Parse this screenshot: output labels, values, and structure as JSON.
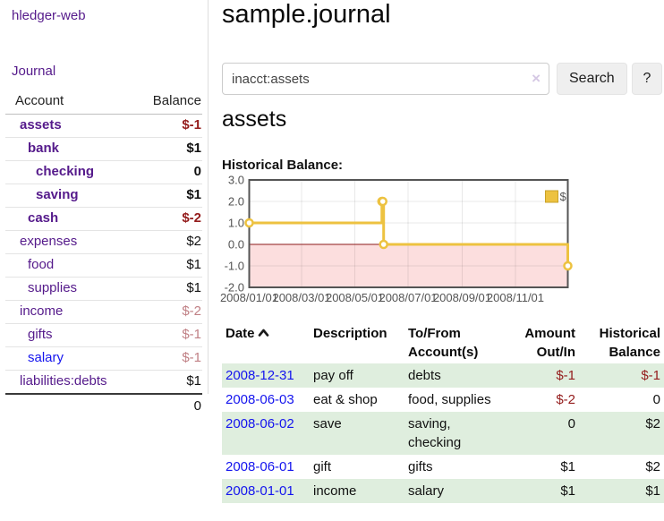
{
  "app": {
    "title": "hledger-web"
  },
  "nav": {
    "journal_label": "Journal"
  },
  "sidebar": {
    "header": {
      "account": "Account",
      "balance": "Balance"
    },
    "accounts": [
      {
        "name": "assets",
        "balance": "$-1",
        "level": 1,
        "emphasized": true
      },
      {
        "name": "bank",
        "balance": "$1",
        "level": 2,
        "emphasized": true
      },
      {
        "name": "checking",
        "balance": "0",
        "level": 3,
        "emphasized": true
      },
      {
        "name": "saving",
        "balance": "$1",
        "level": 3,
        "emphasized": true
      },
      {
        "name": "cash",
        "balance": "$-2",
        "level": 2,
        "emphasized": true
      },
      {
        "name": "expenses",
        "balance": "$2",
        "level": 1,
        "emphasized": false
      },
      {
        "name": "food",
        "balance": "$1",
        "level": 2,
        "emphasized": false
      },
      {
        "name": "supplies",
        "balance": "$1",
        "level": 2,
        "emphasized": false
      },
      {
        "name": "income",
        "balance": "$-2",
        "level": 1,
        "emphasized": false
      },
      {
        "name": "gifts",
        "balance": "$-1",
        "level": 2,
        "emphasized": false
      },
      {
        "name": "salary",
        "balance": "$-1",
        "level": 2,
        "emphasized": false
      },
      {
        "name": "liabilities:debts",
        "balance": "$1",
        "level": 1,
        "emphasized": false
      }
    ],
    "total": "0"
  },
  "main": {
    "title": "sample.journal",
    "search": {
      "value": "inacct:assets",
      "clear_icon": "×",
      "button_label": "Search",
      "help_label": "?"
    },
    "account_heading": "assets",
    "chart_label": "Historical Balance:",
    "table": {
      "headers": {
        "date": "Date",
        "description": "Description",
        "accounts": "To/From Account(s)",
        "amount": "Amount Out/In",
        "balance": "Historical Balance"
      },
      "sort": {
        "column": "date",
        "direction": "ascending"
      },
      "rows": [
        {
          "date": "2008-12-31",
          "description": "pay off",
          "accounts": "debts",
          "amount": "$-1",
          "balance": "$-1"
        },
        {
          "date": "2008-06-03",
          "description": "eat & shop",
          "accounts": "food, supplies",
          "amount": "$-2",
          "balance": "0"
        },
        {
          "date": "2008-06-02",
          "description": "save",
          "accounts": "saving, checking",
          "amount": "0",
          "balance": "$2"
        },
        {
          "date": "2008-06-01",
          "description": "gift",
          "accounts": "gifts",
          "amount": "$1",
          "balance": "$2"
        },
        {
          "date": "2008-01-01",
          "description": "income",
          "accounts": "salary",
          "amount": "$1",
          "balance": "$1"
        }
      ]
    }
  },
  "chart_data": {
    "type": "line",
    "style": "steps",
    "title": "Historical Balance:",
    "xlabel": "",
    "ylabel": "",
    "ylim": [
      -2,
      3
    ],
    "x_range": [
      "2008-01-01",
      "2008-12-31"
    ],
    "x_ticks": [
      "2008/01/01",
      "2008/03/01",
      "2008/05/01",
      "2008/07/01",
      "2008/09/01",
      "2008/11/01"
    ],
    "y_ticks": [
      "3.0",
      "2.0",
      "1.0",
      "0.0",
      "-1.0",
      "-2.0"
    ],
    "grid": true,
    "legend": {
      "label": "$",
      "position": "top-right"
    },
    "series": [
      {
        "name": "$",
        "color": "#edc240",
        "points": [
          {
            "date": "2008-01-01",
            "value": 1
          },
          {
            "date": "2008-06-01",
            "value": 2
          },
          {
            "date": "2008-06-02",
            "value": 2
          },
          {
            "date": "2008-06-03",
            "value": 0
          },
          {
            "date": "2008-12-31",
            "value": -1
          }
        ]
      }
    ],
    "negative_region_color": "#fcdede",
    "zero_line_color": "#8b1a1a"
  },
  "colors": {
    "link_purple": "#551a8b",
    "link_blue": "#1414ee",
    "negative_red": "#941c1c",
    "negative_faded": "#c08085",
    "row_green": "#dfeede",
    "series_gold": "#edc240",
    "chart_negative_fill": "#fcdede",
    "chart_zero_line": "#8b1a1a"
  }
}
